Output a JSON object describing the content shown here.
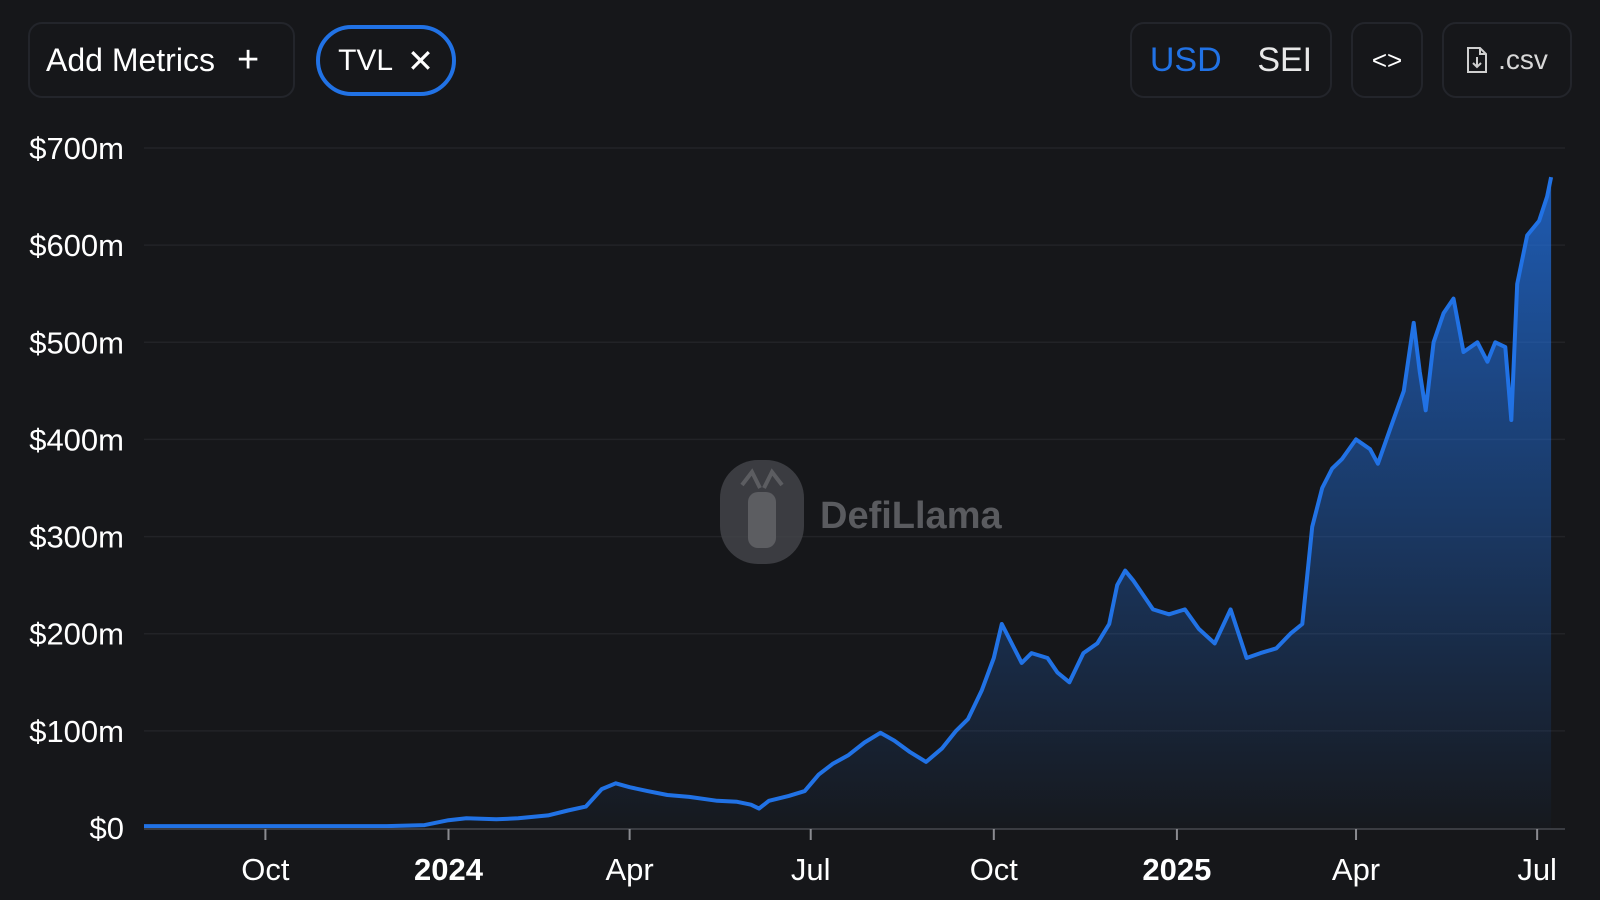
{
  "toolbar": {
    "add_metrics_label": "Add Metrics",
    "add_icon": "plus-icon",
    "metric_chip_label": "TVL",
    "metric_chip_close_icon": "close-icon",
    "currency_options": [
      "USD",
      "SEI"
    ],
    "currency_selected": "USD",
    "embed_icon": "code-brackets-icon",
    "embed_label": "<>",
    "csv_icon": "file-download-icon",
    "csv_label": ".csv",
    "accent_color": "#2172e5"
  },
  "watermark": {
    "text": "DefiLlama",
    "icon": "llama-logo-icon"
  },
  "chart_data": {
    "type": "area",
    "title": "",
    "xlabel": "",
    "ylabel": "",
    "series": [
      {
        "color": "#2172e5"
      }
    ],
    "x_range": [
      "2023-08-01",
      "2025-07-15"
    ],
    "y_range": [
      0,
      700
    ],
    "y_unit": "USD millions",
    "y_ticks": [
      "$0",
      "$100m",
      "$200m",
      "$300m",
      "$400m",
      "$500m",
      "$600m",
      "$700m"
    ],
    "y_tick_values": [
      0,
      100,
      200,
      300,
      400,
      500,
      600,
      700
    ],
    "x_ticks": [
      {
        "label": "Oct",
        "date": "2023-10-01",
        "bold": false
      },
      {
        "label": "2024",
        "date": "2024-01-01",
        "bold": true
      },
      {
        "label": "Apr",
        "date": "2024-04-01",
        "bold": false
      },
      {
        "label": "Jul",
        "date": "2024-07-01",
        "bold": false
      },
      {
        "label": "Oct",
        "date": "2024-10-01",
        "bold": false
      },
      {
        "label": "2025",
        "date": "2025-01-01",
        "bold": true
      },
      {
        "label": "Apr",
        "date": "2025-04-01",
        "bold": false
      },
      {
        "label": "Jul",
        "date": "2025-07-01",
        "bold": false
      }
    ],
    "grid": true,
    "points": [
      [
        "2023-08-01",
        2
      ],
      [
        "2023-09-01",
        2
      ],
      [
        "2023-10-01",
        2
      ],
      [
        "2023-11-01",
        2
      ],
      [
        "2023-12-01",
        2
      ],
      [
        "2023-12-20",
        3
      ],
      [
        "2024-01-01",
        8
      ],
      [
        "2024-01-10",
        10
      ],
      [
        "2024-01-25",
        9
      ],
      [
        "2024-02-05",
        10
      ],
      [
        "2024-02-20",
        13
      ],
      [
        "2024-03-01",
        18
      ],
      [
        "2024-03-10",
        22
      ],
      [
        "2024-03-18",
        40
      ],
      [
        "2024-03-25",
        46
      ],
      [
        "2024-04-01",
        42
      ],
      [
        "2024-04-10",
        38
      ],
      [
        "2024-04-20",
        34
      ],
      [
        "2024-05-01",
        32
      ],
      [
        "2024-05-15",
        28
      ],
      [
        "2024-05-25",
        27
      ],
      [
        "2024-06-01",
        24
      ],
      [
        "2024-06-05",
        20
      ],
      [
        "2024-06-10",
        28
      ],
      [
        "2024-06-20",
        33
      ],
      [
        "2024-06-28",
        38
      ],
      [
        "2024-07-05",
        55
      ],
      [
        "2024-07-12",
        66
      ],
      [
        "2024-07-20",
        75
      ],
      [
        "2024-07-28",
        88
      ],
      [
        "2024-08-05",
        98
      ],
      [
        "2024-08-12",
        90
      ],
      [
        "2024-08-20",
        78
      ],
      [
        "2024-08-28",
        68
      ],
      [
        "2024-09-05",
        82
      ],
      [
        "2024-09-12",
        100
      ],
      [
        "2024-09-18",
        112
      ],
      [
        "2024-09-25",
        142
      ],
      [
        "2024-10-01",
        175
      ],
      [
        "2024-10-05",
        210
      ],
      [
        "2024-10-10",
        190
      ],
      [
        "2024-10-15",
        170
      ],
      [
        "2024-10-20",
        180
      ],
      [
        "2024-10-28",
        175
      ],
      [
        "2024-11-02",
        160
      ],
      [
        "2024-11-08",
        150
      ],
      [
        "2024-11-15",
        180
      ],
      [
        "2024-11-22",
        190
      ],
      [
        "2024-11-28",
        210
      ],
      [
        "2024-12-02",
        250
      ],
      [
        "2024-12-06",
        265
      ],
      [
        "2024-12-10",
        255
      ],
      [
        "2024-12-15",
        240
      ],
      [
        "2024-12-20",
        225
      ],
      [
        "2024-12-28",
        220
      ],
      [
        "2025-01-05",
        225
      ],
      [
        "2025-01-12",
        205
      ],
      [
        "2025-01-20",
        190
      ],
      [
        "2025-01-28",
        225
      ],
      [
        "2025-02-05",
        175
      ],
      [
        "2025-02-12",
        180
      ],
      [
        "2025-02-20",
        185
      ],
      [
        "2025-02-27",
        200
      ],
      [
        "2025-03-05",
        210
      ],
      [
        "2025-03-10",
        310
      ],
      [
        "2025-03-15",
        350
      ],
      [
        "2025-03-20",
        370
      ],
      [
        "2025-03-25",
        380
      ],
      [
        "2025-04-01",
        400
      ],
      [
        "2025-04-08",
        390
      ],
      [
        "2025-04-12",
        375
      ],
      [
        "2025-04-18",
        410
      ],
      [
        "2025-04-25",
        450
      ],
      [
        "2025-04-30",
        520
      ],
      [
        "2025-05-03",
        470
      ],
      [
        "2025-05-06",
        430
      ],
      [
        "2025-05-10",
        500
      ],
      [
        "2025-05-15",
        530
      ],
      [
        "2025-05-20",
        545
      ],
      [
        "2025-05-25",
        490
      ],
      [
        "2025-06-01",
        500
      ],
      [
        "2025-06-06",
        480
      ],
      [
        "2025-06-10",
        500
      ],
      [
        "2025-06-15",
        495
      ],
      [
        "2025-06-18",
        420
      ],
      [
        "2025-06-21",
        560
      ],
      [
        "2025-06-26",
        610
      ],
      [
        "2025-07-02",
        625
      ],
      [
        "2025-07-06",
        650
      ],
      [
        "2025-07-08",
        670
      ]
    ]
  }
}
